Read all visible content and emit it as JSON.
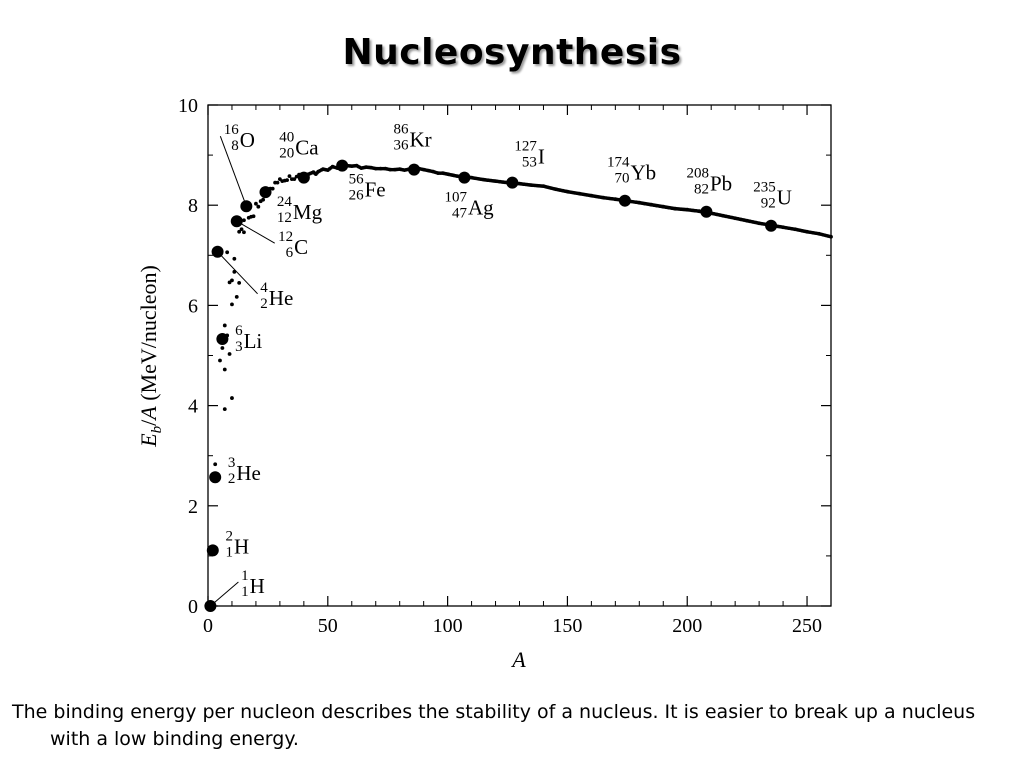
{
  "slide": {
    "title": "Nucleosynthesis",
    "caption": "The binding energy per nucleon describes the stability of a nucleus.  It is easier to break up a nucleus with a low binding energy."
  },
  "chart_data": {
    "type": "scatter",
    "title": "",
    "xlabel": "A",
    "ylabel": "Eb/A (MeV/nucleon)",
    "ylabel_parts": {
      "sym": "E",
      "sub": "b",
      "rest": "/A (MeV/nucleon)"
    },
    "xlim": [
      0,
      260
    ],
    "ylim": [
      0,
      10
    ],
    "xticks": [
      0,
      50,
      100,
      150,
      200,
      250
    ],
    "yticks": [
      0,
      2,
      4,
      6,
      8,
      10
    ],
    "grid": false,
    "labeled_nuclei": [
      {
        "name": "1H",
        "A": 1,
        "Z": 1,
        "sym": "H",
        "Eb": 0.0
      },
      {
        "name": "2H",
        "A": 2,
        "Z": 1,
        "sym": "H",
        "Eb": 1.11
      },
      {
        "name": "3He",
        "A": 3,
        "Z": 2,
        "sym": "He",
        "Eb": 2.57
      },
      {
        "name": "6Li",
        "A": 6,
        "Z": 3,
        "sym": "Li",
        "Eb": 5.33
      },
      {
        "name": "4He",
        "A": 4,
        "Z": 2,
        "sym": "He",
        "Eb": 7.07
      },
      {
        "name": "12C",
        "A": 12,
        "Z": 6,
        "sym": "C",
        "Eb": 7.68
      },
      {
        "name": "16O",
        "A": 16,
        "Z": 8,
        "sym": "O",
        "Eb": 7.98
      },
      {
        "name": "24Mg",
        "A": 24,
        "Z": 12,
        "sym": "Mg",
        "Eb": 8.26
      },
      {
        "name": "40Ca",
        "A": 40,
        "Z": 20,
        "sym": "Ca",
        "Eb": 8.55
      },
      {
        "name": "56Fe",
        "A": 56,
        "Z": 26,
        "sym": "Fe",
        "Eb": 8.79
      },
      {
        "name": "86Kr",
        "A": 86,
        "Z": 36,
        "sym": "Kr",
        "Eb": 8.71
      },
      {
        "name": "107Ag",
        "A": 107,
        "Z": 47,
        "sym": "Ag",
        "Eb": 8.55
      },
      {
        "name": "127I",
        "A": 127,
        "Z": 53,
        "sym": "I",
        "Eb": 8.45
      },
      {
        "name": "174Yb",
        "A": 174,
        "Z": 70,
        "sym": "Yb",
        "Eb": 8.09
      },
      {
        "name": "208Pb",
        "A": 208,
        "Z": 82,
        "sym": "Pb",
        "Eb": 7.87
      },
      {
        "name": "235U",
        "A": 235,
        "Z": 92,
        "sym": "U",
        "Eb": 7.59
      }
    ],
    "small_points": [
      [
        3,
        2.83
      ],
      [
        5,
        4.9
      ],
      [
        6,
        5.15
      ],
      [
        7,
        5.6
      ],
      [
        7,
        3.93
      ],
      [
        7,
        4.72
      ],
      [
        8,
        5.4
      ],
      [
        8,
        7.06
      ],
      [
        9,
        6.46
      ],
      [
        9,
        5.03
      ],
      [
        10,
        4.15
      ],
      [
        10,
        6.5
      ],
      [
        10,
        6.02
      ],
      [
        11,
        6.93
      ],
      [
        11,
        6.67
      ],
      [
        12,
        6.17
      ],
      [
        13,
        7.47
      ],
      [
        13,
        6.45
      ],
      [
        14,
        7.52
      ],
      [
        15,
        7.7
      ],
      [
        15,
        7.46
      ],
      [
        17,
        7.75
      ],
      [
        18,
        7.77
      ],
      [
        19,
        7.78
      ],
      [
        20,
        8.03
      ],
      [
        21,
        7.97
      ],
      [
        22,
        8.08
      ],
      [
        23,
        8.11
      ],
      [
        25,
        8.22
      ],
      [
        26,
        8.33
      ],
      [
        27,
        8.33
      ],
      [
        28,
        8.45
      ],
      [
        29,
        8.45
      ],
      [
        30,
        8.52
      ],
      [
        31,
        8.48
      ],
      [
        32,
        8.49
      ],
      [
        33,
        8.5
      ],
      [
        34,
        8.58
      ],
      [
        35,
        8.52
      ],
      [
        36,
        8.52
      ],
      [
        37,
        8.57
      ],
      [
        38,
        8.61
      ],
      [
        39,
        8.56
      ],
      [
        41,
        8.58
      ],
      [
        42,
        8.62
      ],
      [
        44,
        8.66
      ],
      [
        45,
        8.62
      ],
      [
        46,
        8.67
      ],
      [
        48,
        8.72
      ],
      [
        50,
        8.7
      ],
      [
        52,
        8.77
      ],
      [
        54,
        8.74
      ],
      [
        58,
        8.79
      ],
      [
        60,
        8.78
      ],
      [
        62,
        8.79
      ],
      [
        64,
        8.74
      ],
      [
        66,
        8.76
      ],
      [
        68,
        8.75
      ],
      [
        70,
        8.73
      ],
      [
        72,
        8.73
      ],
      [
        74,
        8.73
      ],
      [
        76,
        8.71
      ],
      [
        78,
        8.71
      ],
      [
        80,
        8.72
      ],
      [
        82,
        8.7
      ],
      [
        84,
        8.72
      ],
      [
        88,
        8.73
      ],
      [
        90,
        8.71
      ],
      [
        92,
        8.69
      ],
      [
        94,
        8.67
      ],
      [
        96,
        8.64
      ],
      [
        98,
        8.64
      ],
      [
        100,
        8.62
      ],
      [
        102,
        8.6
      ],
      [
        104,
        8.58
      ],
      [
        110,
        8.55
      ],
      [
        115,
        8.51
      ],
      [
        120,
        8.48
      ],
      [
        125,
        8.45
      ],
      [
        130,
        8.43
      ],
      [
        135,
        8.4
      ],
      [
        140,
        8.38
      ],
      [
        145,
        8.32
      ],
      [
        150,
        8.27
      ],
      [
        155,
        8.23
      ],
      [
        160,
        8.19
      ],
      [
        165,
        8.15
      ],
      [
        170,
        8.12
      ],
      [
        180,
        8.05
      ],
      [
        185,
        8.01
      ],
      [
        190,
        7.97
      ],
      [
        195,
        7.93
      ],
      [
        200,
        7.91
      ],
      [
        205,
        7.88
      ],
      [
        210,
        7.84
      ],
      [
        215,
        7.79
      ],
      [
        220,
        7.74
      ],
      [
        225,
        7.69
      ],
      [
        230,
        7.64
      ],
      [
        240,
        7.56
      ],
      [
        245,
        7.52
      ],
      [
        250,
        7.47
      ],
      [
        255,
        7.43
      ],
      [
        260,
        7.37
      ]
    ]
  }
}
